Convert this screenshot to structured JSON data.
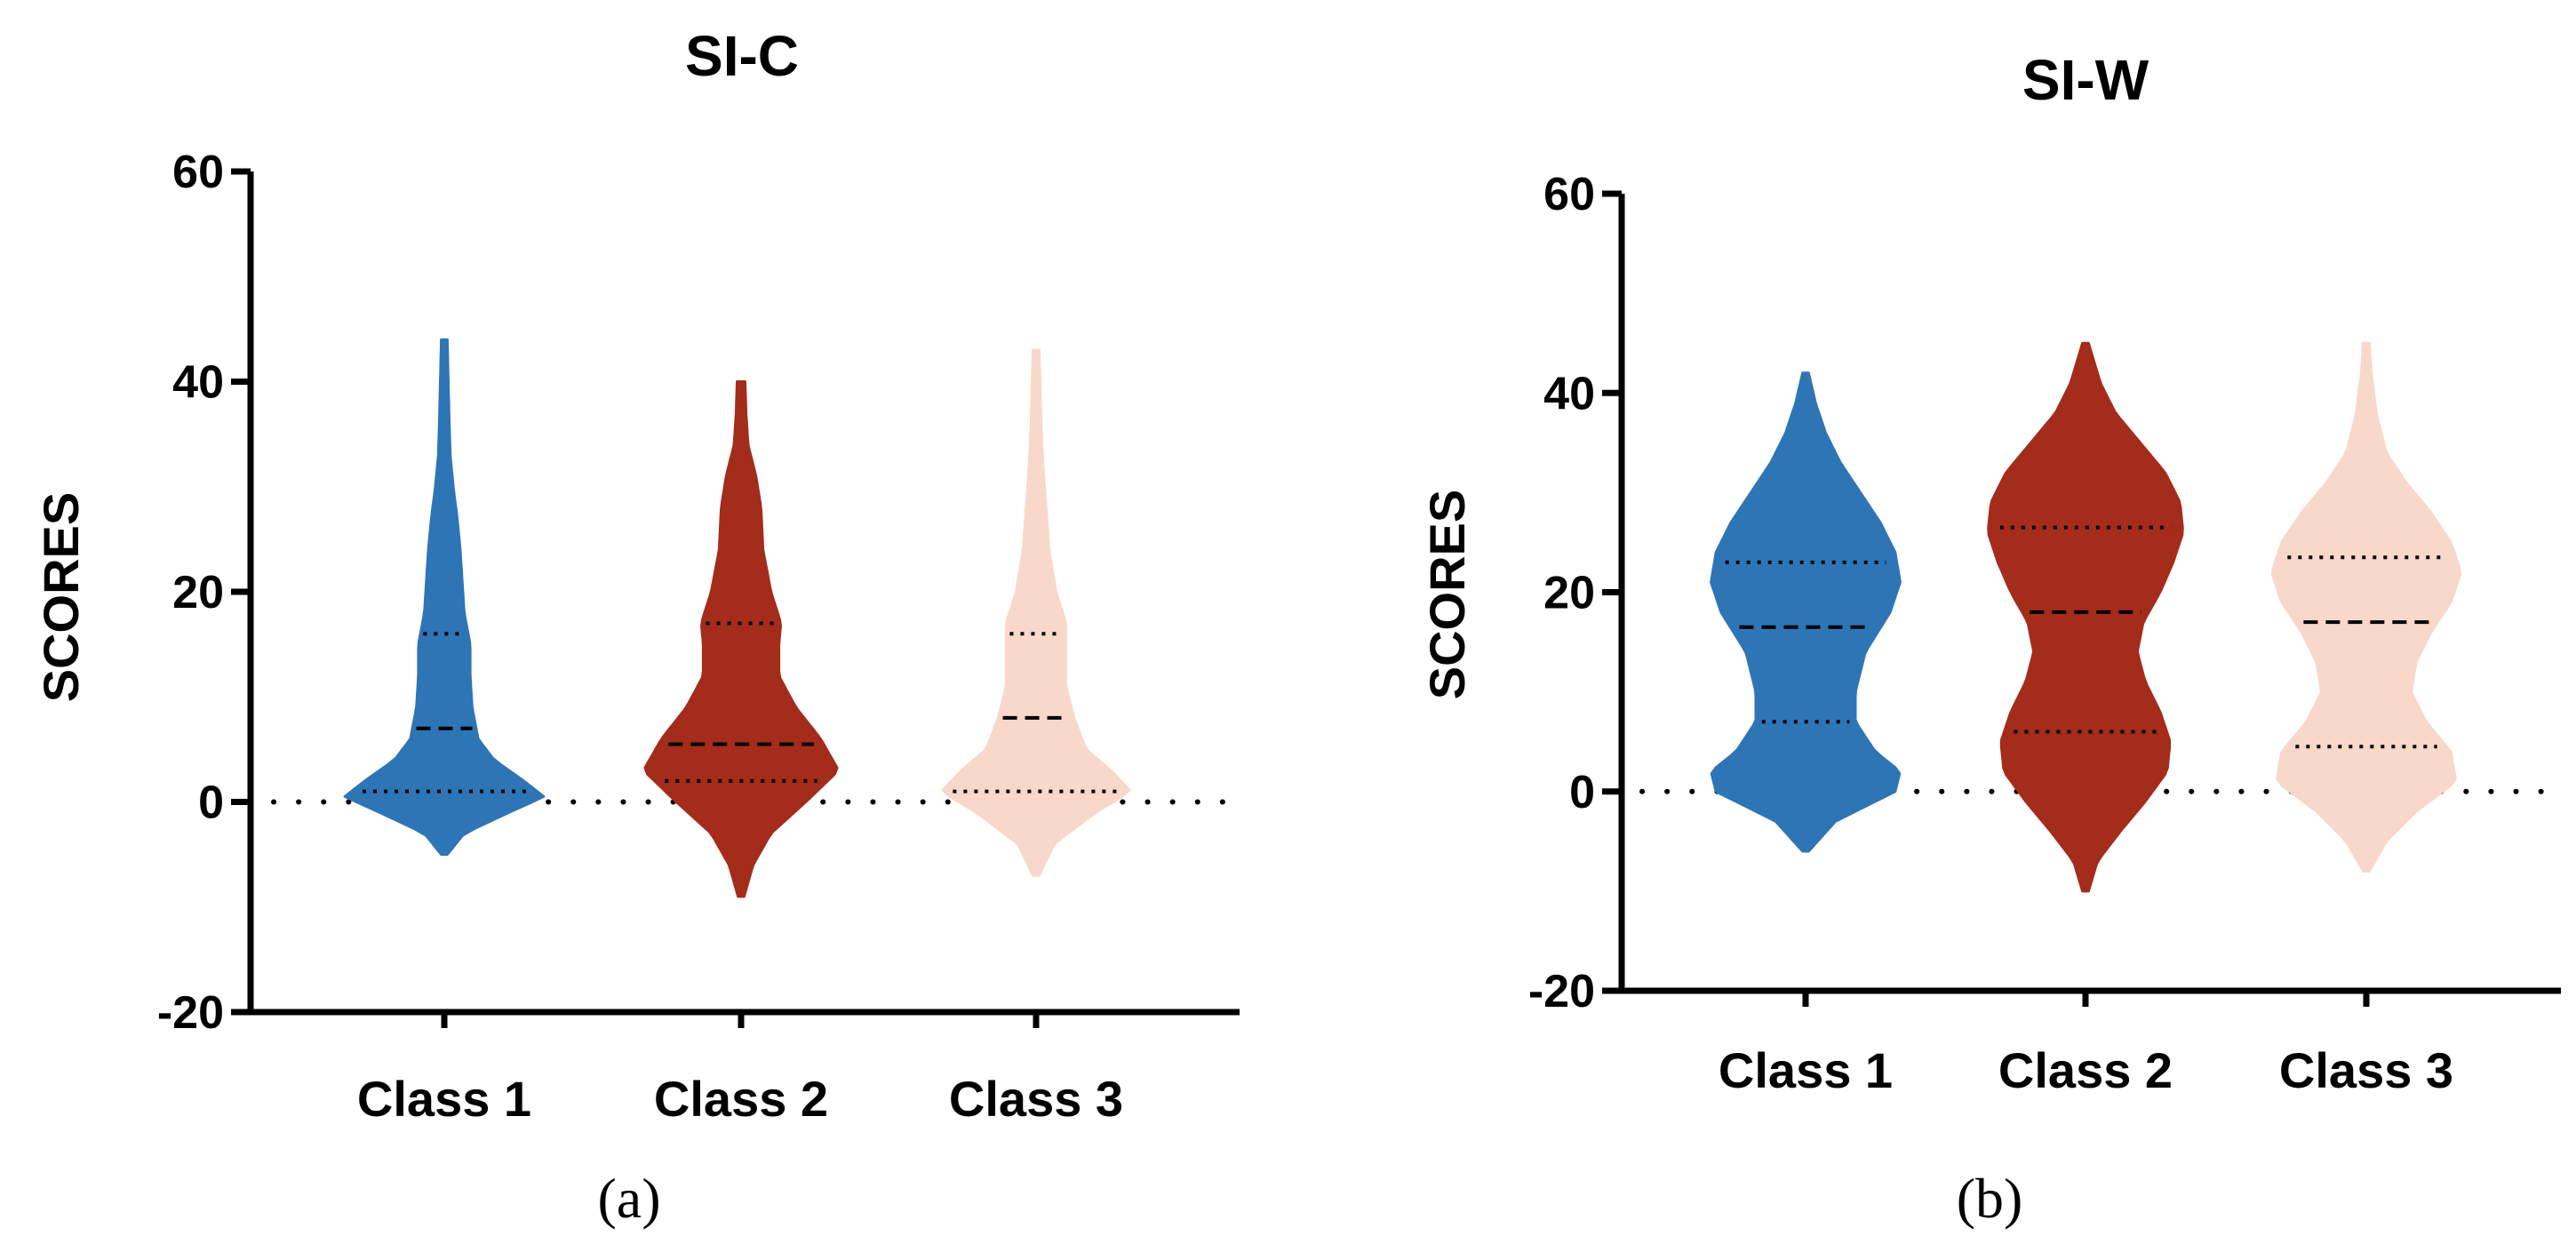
{
  "panels": [
    {
      "id": "a",
      "title": "SI-C",
      "panel_label": "(a)",
      "ylabel": "SCORES"
    },
    {
      "id": "b",
      "title": "SI-W",
      "panel_label": "(b)",
      "ylabel": "SCORES"
    }
  ],
  "chart_data": [
    {
      "type": "violin",
      "title": "SI-C",
      "xlabel": "",
      "ylabel": "SCORES",
      "ylim": [
        -20,
        60
      ],
      "yticks": [
        -20,
        0,
        20,
        40,
        60
      ],
      "reference_line": 0,
      "categories": [
        "Class 1",
        "Class 2",
        "Class 3"
      ],
      "series": [
        {
          "name": "Class 1",
          "color": "#2e75b6",
          "min": -5,
          "max": 44,
          "q1": 1,
          "median": 7,
          "q3": 16,
          "density": [
            [
              -5,
              0.03
            ],
            [
              -3,
              0.2
            ],
            [
              -1,
              0.65
            ],
            [
              0.5,
              1.0
            ],
            [
              2,
              0.8
            ],
            [
              4,
              0.5
            ],
            [
              6,
              0.34
            ],
            [
              9,
              0.28
            ],
            [
              12,
              0.26
            ],
            [
              15,
              0.26
            ],
            [
              18,
              0.2
            ],
            [
              21,
              0.18
            ],
            [
              24,
              0.16
            ],
            [
              27,
              0.13
            ],
            [
              30,
              0.09
            ],
            [
              33,
              0.06
            ],
            [
              36,
              0.05
            ],
            [
              40,
              0.04
            ],
            [
              44,
              0.03
            ]
          ]
        },
        {
          "name": "Class 2",
          "color": "#a42c1b",
          "min": -9,
          "max": 40,
          "q1": 2,
          "median": 5.5,
          "q3": 17,
          "density": [
            [
              -9,
              0.03
            ],
            [
              -6,
              0.12
            ],
            [
              -3,
              0.3
            ],
            [
              0,
              0.65
            ],
            [
              3,
              0.98
            ],
            [
              6,
              0.8
            ],
            [
              9,
              0.55
            ],
            [
              12,
              0.38
            ],
            [
              15,
              0.38
            ],
            [
              17,
              0.4
            ],
            [
              20,
              0.3
            ],
            [
              24,
              0.22
            ],
            [
              28,
              0.2
            ],
            [
              31,
              0.15
            ],
            [
              34,
              0.07
            ],
            [
              37,
              0.05
            ],
            [
              40,
              0.04
            ]
          ]
        },
        {
          "name": "Class 3",
          "color": "#f8d8ca",
          "min": -7,
          "max": 43,
          "q1": 1,
          "median": 8,
          "q3": 16,
          "density": [
            [
              -7,
              0.03
            ],
            [
              -4,
              0.18
            ],
            [
              -1,
              0.6
            ],
            [
              1,
              0.95
            ],
            [
              3,
              0.75
            ],
            [
              5,
              0.5
            ],
            [
              8,
              0.38
            ],
            [
              11,
              0.3
            ],
            [
              14,
              0.3
            ],
            [
              17,
              0.3
            ],
            [
              20,
              0.2
            ],
            [
              24,
              0.13
            ],
            [
              28,
              0.1
            ],
            [
              32,
              0.07
            ],
            [
              36,
              0.05
            ],
            [
              40,
              0.04
            ],
            [
              43,
              0.03
            ]
          ]
        }
      ]
    },
    {
      "type": "violin",
      "title": "SI-W",
      "xlabel": "",
      "ylabel": "SCORES",
      "ylim": [
        -20,
        60
      ],
      "yticks": [
        -20,
        0,
        20,
        40,
        60
      ],
      "reference_line": 0,
      "categories": [
        "Class 1",
        "Class 2",
        "Class 3"
      ],
      "series": [
        {
          "name": "Class 1",
          "color": "#2e75b6",
          "min": -6,
          "max": 42,
          "q1": 7,
          "median": 16.5,
          "q3": 23,
          "density": [
            [
              -6,
              0.03
            ],
            [
              -3,
              0.3
            ],
            [
              0,
              0.9
            ],
            [
              2,
              0.95
            ],
            [
              4,
              0.7
            ],
            [
              7,
              0.5
            ],
            [
              10,
              0.5
            ],
            [
              14,
              0.6
            ],
            [
              18,
              0.85
            ],
            [
              21,
              0.95
            ],
            [
              24,
              0.9
            ],
            [
              27,
              0.75
            ],
            [
              30,
              0.55
            ],
            [
              33,
              0.35
            ],
            [
              36,
              0.2
            ],
            [
              39,
              0.1
            ],
            [
              42,
              0.03
            ]
          ]
        },
        {
          "name": "Class 2",
          "color": "#a42c1b",
          "min": -10,
          "max": 45,
          "q1": 6,
          "median": 18,
          "q3": 26.5,
          "density": [
            [
              -10,
              0.03
            ],
            [
              -7,
              0.12
            ],
            [
              -4,
              0.35
            ],
            [
              -1,
              0.6
            ],
            [
              2,
              0.82
            ],
            [
              5,
              0.85
            ],
            [
              8,
              0.75
            ],
            [
              11,
              0.6
            ],
            [
              14,
              0.52
            ],
            [
              17,
              0.58
            ],
            [
              20,
              0.75
            ],
            [
              23,
              0.88
            ],
            [
              26,
              0.98
            ],
            [
              29,
              0.95
            ],
            [
              32,
              0.8
            ],
            [
              35,
              0.55
            ],
            [
              38,
              0.3
            ],
            [
              41,
              0.15
            ],
            [
              45,
              0.03
            ]
          ]
        },
        {
          "name": "Class 3",
          "color": "#f8d8ca",
          "min": -8,
          "max": 45,
          "q1": 4.5,
          "median": 17,
          "q3": 23.5,
          "density": [
            [
              -8,
              0.03
            ],
            [
              -5,
              0.2
            ],
            [
              -2,
              0.5
            ],
            [
              1,
              0.9
            ],
            [
              4,
              0.85
            ],
            [
              7,
              0.6
            ],
            [
              10,
              0.45
            ],
            [
              13,
              0.5
            ],
            [
              16,
              0.65
            ],
            [
              19,
              0.85
            ],
            [
              22,
              0.95
            ],
            [
              25,
              0.85
            ],
            [
              28,
              0.65
            ],
            [
              31,
              0.4
            ],
            [
              34,
              0.2
            ],
            [
              38,
              0.1
            ],
            [
              42,
              0.05
            ],
            [
              45,
              0.03
            ]
          ]
        }
      ]
    }
  ]
}
